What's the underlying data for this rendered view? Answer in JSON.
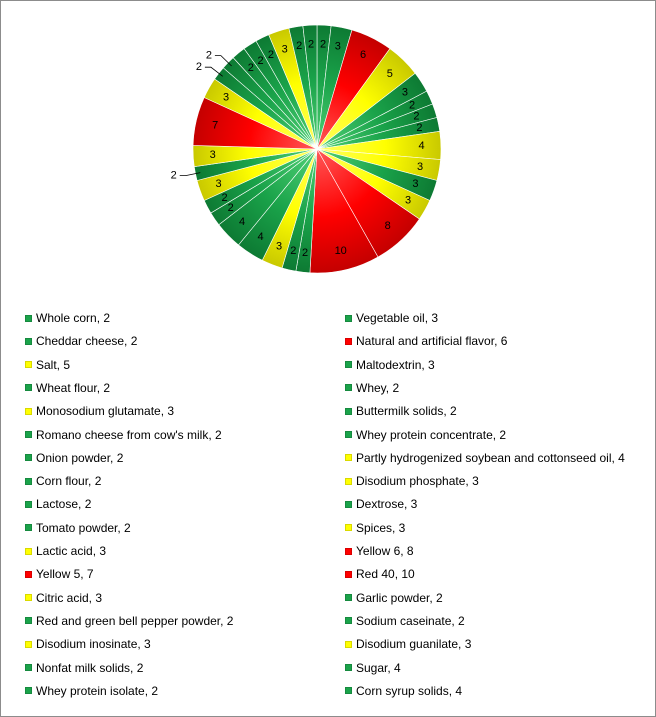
{
  "chart_data": {
    "type": "pie",
    "title": "",
    "colors": {
      "green": "#1aa34a",
      "yellow": "#ffff00",
      "red": "#ff0000"
    },
    "slices": [
      {
        "label": "Whole corn",
        "value": 2,
        "color": "green",
        "legend": "Whole corn, 2"
      },
      {
        "label": "Vegetable oil",
        "value": 3,
        "color": "green",
        "legend": "Vegetable oil, 3"
      },
      {
        "label": "Cheddar cheese",
        "value": 2,
        "color": "green",
        "legend": "Cheddar cheese, 2"
      },
      {
        "label": "Natural and artificial flavor",
        "value": 6,
        "color": "red",
        "legend": "Natural and artificial flavor, 6"
      },
      {
        "label": "Salt",
        "value": 5,
        "color": "yellow",
        "legend": "Salt, 5"
      },
      {
        "label": "Maltodextrin",
        "value": 3,
        "color": "green",
        "legend": "Maltodextrin, 3"
      },
      {
        "label": "Wheat flour",
        "value": 2,
        "color": "green",
        "legend": "Wheat flour, 2"
      },
      {
        "label": "Whey",
        "value": 2,
        "color": "green",
        "legend": "Whey, 2"
      },
      {
        "label": "Monosodium glutamate",
        "value": 3,
        "color": "yellow",
        "legend": "Monosodium glutamate, 3"
      },
      {
        "label": "Buttermilk solids",
        "value": 2,
        "color": "green",
        "legend": "Buttermilk solids, 2"
      },
      {
        "label": "Romano cheese from cow's milk",
        "value": 2,
        "color": "green",
        "legend": "Romano cheese from cow's milk, 2"
      },
      {
        "label": "Whey protein concentrate",
        "value": 2,
        "color": "green",
        "legend": "Whey protein concentrate, 2"
      },
      {
        "label": "Onion powder",
        "value": 2,
        "color": "green",
        "legend": "Onion powder, 2"
      },
      {
        "label": "Partly hydrogenized soybean and cottonseed oil",
        "value": 4,
        "color": "yellow",
        "legend": "Partly hydrogenized soybean and cottonseed oil, 4"
      },
      {
        "label": "Corn flour",
        "value": 2,
        "color": "green",
        "legend": "Corn flour, 2"
      },
      {
        "label": "Disodium phosphate",
        "value": 3,
        "color": "yellow",
        "legend": "Disodium phosphate, 3"
      },
      {
        "label": "Lactose",
        "value": 2,
        "color": "green",
        "legend": "Lactose, 2"
      },
      {
        "label": "Dextrose",
        "value": 3,
        "color": "green",
        "legend": "Dextrose, 3"
      },
      {
        "label": "Tomato powder",
        "value": 2,
        "color": "green",
        "legend": "Tomato powder, 2"
      },
      {
        "label": "Spices",
        "value": 3,
        "color": "yellow",
        "legend": "Spices, 3"
      },
      {
        "label": "Lactic acid",
        "value": 3,
        "color": "yellow",
        "legend": "Lactic acid, 3"
      },
      {
        "label": "Yellow 6",
        "value": 8,
        "color": "red",
        "legend": "Yellow 6, 8"
      },
      {
        "label": "Yellow 5",
        "value": 7,
        "color": "red",
        "legend": "Yellow 5, 7"
      },
      {
        "label": "Red 40",
        "value": 10,
        "color": "red",
        "legend": "Red 40, 10"
      },
      {
        "label": "Citric acid",
        "value": 3,
        "color": "yellow",
        "legend": "Citric acid, 3"
      },
      {
        "label": "Garlic powder",
        "value": 2,
        "color": "green",
        "legend": "Garlic powder, 2"
      },
      {
        "label": "Red and green bell pepper powder",
        "value": 2,
        "color": "green",
        "legend": "Red and green bell pepper powder, 2"
      },
      {
        "label": "Sodium caseinate",
        "value": 2,
        "color": "green",
        "legend": "Sodium caseinate, 2"
      },
      {
        "label": "Disodium inosinate",
        "value": 3,
        "color": "yellow",
        "legend": "Disodium inosinate, 3"
      },
      {
        "label": "Disodium guanilate",
        "value": 3,
        "color": "yellow",
        "legend": "Disodium guanilate, 3"
      },
      {
        "label": "Nonfat milk solids",
        "value": 2,
        "color": "green",
        "legend": "Nonfat milk solids, 2"
      },
      {
        "label": "Sugar",
        "value": 4,
        "color": "green",
        "legend": "Sugar, 4"
      },
      {
        "label": "Whey protein isolate",
        "value": 2,
        "color": "green",
        "legend": "Whey protein isolate, 2"
      },
      {
        "label": "Corn syrup solids",
        "value": 4,
        "color": "green",
        "legend": "Corn syrup solids, 4"
      }
    ],
    "pie_order": [
      0,
      1,
      3,
      4,
      5,
      7,
      9,
      11,
      13,
      15,
      17,
      19,
      21,
      23,
      25,
      27,
      29,
      31,
      33,
      32,
      30,
      28,
      26,
      24,
      22,
      20,
      18,
      16,
      14,
      12,
      10,
      8,
      6,
      2
    ],
    "slice_sequence": [
      "Whole corn",
      "Vegetable oil",
      "Natural and artificial flavor",
      "Salt",
      "Maltodextrin",
      "Whey",
      "Buttermilk solids",
      "Whey protein concentrate",
      "Partly hydrogenized soybean and cottonseed oil",
      "Disodium phosphate",
      "Dextrose",
      "Spices",
      "Yellow 6",
      "Red 40",
      "Garlic powder",
      "Sodium caseinate",
      "Disodium guanilate",
      "Sugar",
      "Corn syrup solids",
      "Whey protein isolate",
      "Nonfat milk solids",
      "Disodium inosinate",
      "Red and green bell pepper powder",
      "Citric acid",
      "Yellow 5",
      "Lactic acid",
      "Tomato powder",
      "Lactose",
      "Corn flour",
      "Onion powder",
      "Romano cheese from cow's milk",
      "Monosodium glutamate",
      "Wheat flour",
      "Cheddar cheese"
    ],
    "legend_placement": "bottom",
    "legend_columns": 2
  }
}
